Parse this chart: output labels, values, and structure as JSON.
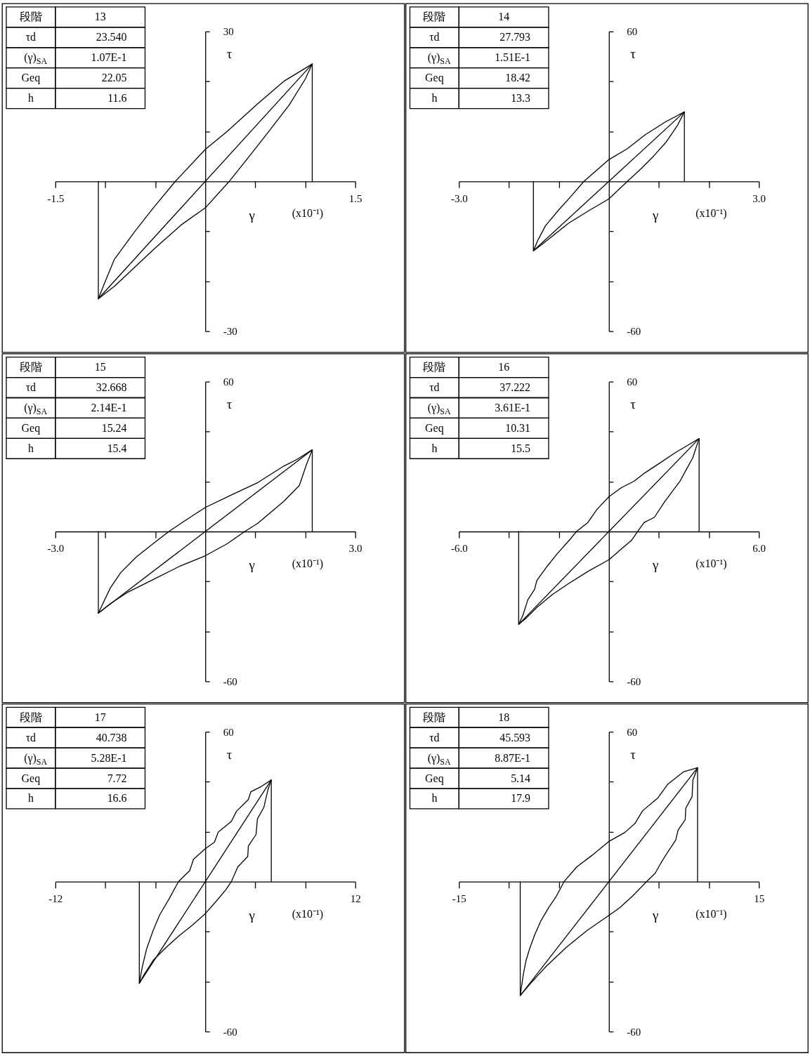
{
  "chart_data": [
    {
      "type": "line",
      "xlabel": "γ",
      "ylabel": "τ",
      "xlim": [
        -1.5,
        1.5
      ],
      "ylim": [
        -30,
        30
      ],
      "xticks": [
        -1.5,
        {
          "value": -1,
          "label": null
        },
        {
          "value": -0.5,
          "label": null
        },
        {
          "value": 0.5,
          "label": null
        },
        {
          "value": 1,
          "label": null
        },
        1.5
      ],
      "yticks": [
        -30,
        {
          "value": -20,
          "label": null
        },
        {
          "value": -10,
          "label": null
        },
        {
          "value": 10,
          "label": null
        },
        {
          "value": 20,
          "label": null
        },
        30
      ],
      "series": [
        {
          "color": "#000000",
          "x": [
            -1.07,
            1.07
          ],
          "values": [
            -23.5,
            23.5
          ]
        },
        {
          "color": "#000000",
          "x": [
            -1.07,
            -1.07
          ],
          "values": [
            -23.5,
            0
          ]
        },
        {
          "color": "#000000",
          "x": [
            1.07,
            1.07
          ],
          "values": [
            0,
            23.5
          ]
        }
      ],
      "annotations": [
        "(x10⁻¹)",
        "段階",
        "13",
        "τd",
        "23.540",
        "(γ)$_{SA}$",
        "1.07E-1",
        "Geq",
        "22.05",
        "h",
        "11.6"
      ]
    },
    {
      "type": "line",
      "xlabel": "γ",
      "ylabel": "τ",
      "xlim": [
        -3,
        3
      ],
      "ylim": [
        -60,
        60
      ],
      "xticks": [
        {
          "value": -3,
          "label": "-3.0"
        },
        {
          "value": -2,
          "label": null
        },
        {
          "value": -1,
          "label": null
        },
        {
          "value": 1,
          "label": null
        },
        {
          "value": 2,
          "label": null
        },
        {
          "value": 3,
          "label": "3.0"
        }
      ],
      "yticks": [
        -60,
        {
          "value": -40,
          "label": null
        },
        {
          "value": -20,
          "label": null
        },
        {
          "value": 20,
          "label": null
        },
        {
          "value": 40,
          "label": null
        },
        60
      ],
      "series": [
        {
          "color": "#000000",
          "x": [
            -1.51,
            1.51
          ],
          "values": [
            -27.8,
            27.8
          ]
        },
        {
          "color": "#000000",
          "x": [
            -1.51,
            -1.51
          ],
          "values": [
            -27.8,
            0
          ]
        },
        {
          "color": "#000000",
          "x": [
            1.51,
            1.51
          ],
          "values": [
            0,
            27.8
          ]
        }
      ],
      "annotations": [
        "(x10⁻¹)",
        "段階",
        "14",
        "τd",
        "27.793",
        "(γ)$_{SA}$",
        "1.51E-1",
        "Geq",
        "18.42",
        "h",
        "13.3"
      ]
    },
    {
      "type": "line",
      "xlabel": "γ",
      "ylabel": "τ",
      "xlim": [
        -3,
        3
      ],
      "ylim": [
        -60,
        60
      ],
      "xticks": [
        {
          "value": -3,
          "label": "-3.0"
        },
        {
          "value": -2,
          "label": null
        },
        {
          "value": -1,
          "label": null
        },
        {
          "value": 1,
          "label": null
        },
        {
          "value": 2,
          "label": null
        },
        {
          "value": 3,
          "label": "3.0"
        }
      ],
      "yticks": [
        -60,
        {
          "value": -40,
          "label": null
        },
        {
          "value": -20,
          "label": null
        },
        {
          "value": 20,
          "label": null
        },
        {
          "value": 40,
          "label": null
        },
        60
      ],
      "series": [
        {
          "color": "#000000",
          "x": [
            -2.14,
            2.14
          ],
          "values": [
            -32.7,
            32.7
          ]
        },
        {
          "color": "#000000",
          "x": [
            -2.14,
            -2.14
          ],
          "values": [
            -32.7,
            0
          ]
        },
        {
          "color": "#000000",
          "x": [
            2.14,
            2.14
          ],
          "values": [
            0,
            32.7
          ]
        }
      ],
      "annotations": [
        "(x10⁻¹)",
        "段階",
        "15",
        "τd",
        "32.668",
        "(γ)$_{SA}$",
        "2.14E-1",
        "Geq",
        "15.24",
        "h",
        "15.4"
      ]
    },
    {
      "type": "line",
      "xlabel": "γ",
      "ylabel": "τ",
      "xlim": [
        -6,
        6
      ],
      "ylim": [
        -60,
        60
      ],
      "xticks": [
        {
          "value": -6,
          "label": "-6.0"
        },
        {
          "value": -4,
          "label": null
        },
        {
          "value": -2,
          "label": null
        },
        {
          "value": 2,
          "label": null
        },
        {
          "value": 4,
          "label": null
        },
        {
          "value": 6,
          "label": "6.0"
        }
      ],
      "yticks": [
        -60,
        {
          "value": -40,
          "label": null
        },
        {
          "value": -20,
          "label": null
        },
        {
          "value": 20,
          "label": null
        },
        {
          "value": 40,
          "label": null
        },
        60
      ],
      "series": [
        {
          "color": "#000000",
          "x": [
            -3.61,
            3.61
          ],
          "values": [
            -37.2,
            37.2
          ]
        },
        {
          "color": "#000000",
          "x": [
            -3.61,
            -3.61
          ],
          "values": [
            -37.2,
            0
          ]
        },
        {
          "color": "#000000",
          "x": [
            3.61,
            3.61
          ],
          "values": [
            0,
            37.2
          ]
        }
      ],
      "annotations": [
        "(x10⁻¹)",
        "段階",
        "16",
        "τd",
        "37.222",
        "(γ)$_{SA}$",
        "3.61E-1",
        "Geq",
        "10.31",
        "h",
        "15.5"
      ]
    },
    {
      "type": "line",
      "xlabel": "γ",
      "ylabel": "τ",
      "xlim": [
        -12,
        12
      ],
      "ylim": [
        -60,
        60
      ],
      "xticks": [
        -12,
        {
          "value": -8,
          "label": null
        },
        {
          "value": -4,
          "label": null
        },
        {
          "value": 4,
          "label": null
        },
        {
          "value": 8,
          "label": null
        },
        12
      ],
      "yticks": [
        -60,
        {
          "value": -40,
          "label": null
        },
        {
          "value": -20,
          "label": null
        },
        {
          "value": 20,
          "label": null
        },
        {
          "value": 40,
          "label": null
        },
        60
      ],
      "series": [
        {
          "color": "#000000",
          "x": [
            -5.28,
            5.28
          ],
          "values": [
            -40.7,
            40.7
          ]
        },
        {
          "color": "#000000",
          "x": [
            -5.28,
            -5.28
          ],
          "values": [
            -40.7,
            0
          ]
        },
        {
          "color": "#000000",
          "x": [
            5.28,
            5.28
          ],
          "values": [
            0,
            40.7
          ]
        }
      ],
      "annotations": [
        "(x10⁻¹)",
        "段階",
        "17",
        "τd",
        "40.738",
        "(γ)$_{SA}$",
        "5.28E-1",
        "Geq",
        "7.72",
        "h",
        "16.6"
      ]
    },
    {
      "type": "line",
      "xlabel": "γ",
      "ylabel": "τ",
      "xlim": [
        -15,
        15
      ],
      "ylim": [
        -60,
        60
      ],
      "xticks": [
        -15,
        {
          "value": -10,
          "label": null
        },
        {
          "value": -5,
          "label": null
        },
        {
          "value": 5,
          "label": null
        },
        {
          "value": 10,
          "label": null
        },
        15
      ],
      "yticks": [
        -60,
        {
          "value": -40,
          "label": null
        },
        {
          "value": -20,
          "label": null
        },
        {
          "value": 20,
          "label": null
        },
        {
          "value": 40,
          "label": null
        },
        60
      ],
      "series": [
        {
          "color": "#000000",
          "x": [
            -8.87,
            8.87
          ],
          "values": [
            -45.6,
            45.6
          ]
        },
        {
          "color": "#000000",
          "x": [
            -8.87,
            -8.87
          ],
          "values": [
            -45.6,
            0
          ]
        },
        {
          "color": "#000000",
          "x": [
            8.87,
            8.87
          ],
          "values": [
            0,
            45.6
          ]
        }
      ],
      "annotations": [
        "(x10⁻¹)",
        "段階",
        "18",
        "τd",
        "45.593",
        "(γ)$_{SA}$",
        "8.87E-1",
        "Geq",
        "5.14",
        "h",
        "17.9"
      ]
    }
  ]
}
